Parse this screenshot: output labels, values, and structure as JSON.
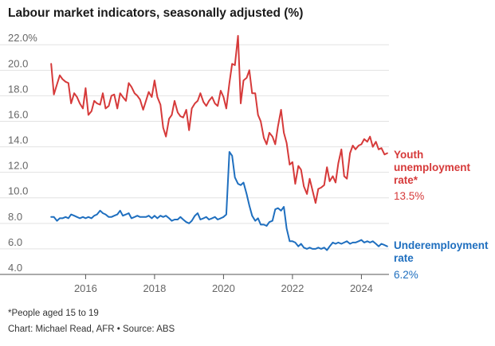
{
  "title": "Labour market indicators, seasonally adjusted (%)",
  "footnote": "*People aged 15 to 19",
  "credit": "Chart: Michael Read, AFR • Source: ABS",
  "colors": {
    "youth": "#d63a3a",
    "under": "#1f6fbf"
  },
  "chart_data": {
    "type": "line",
    "title": "Labour market indicators, seasonally adjusted (%)",
    "xlabel": "",
    "ylabel": "",
    "xlim": [
      2014.95,
      2024.8
    ],
    "ylim": [
      4.0,
      22.7
    ],
    "x_ticks": [
      2016,
      2018,
      2020,
      2022,
      2024
    ],
    "x_tick_labels": [
      "2016",
      "2018",
      "2020",
      "2022",
      "2024"
    ],
    "y_ticks": [
      4,
      6,
      8,
      10,
      12,
      14,
      16,
      18,
      20,
      22
    ],
    "y_tick_labels": [
      "4.0",
      "6.0",
      "8.0",
      "10.0",
      "12.0",
      "14.0",
      "16.0",
      "18.0",
      "20.0",
      "22.0%"
    ],
    "grid": true,
    "legend": "inline-right",
    "series": [
      {
        "name": "Youth unemployment rate*",
        "end_label": "13.5%",
        "color": "#d63a3a",
        "x": [
          2015.0,
          2015.08,
          2015.17,
          2015.25,
          2015.33,
          2015.42,
          2015.5,
          2015.58,
          2015.67,
          2015.75,
          2015.83,
          2015.92,
          2016.0,
          2016.08,
          2016.17,
          2016.25,
          2016.33,
          2016.42,
          2016.5,
          2016.58,
          2016.67,
          2016.75,
          2016.83,
          2016.92,
          2017.0,
          2017.08,
          2017.17,
          2017.25,
          2017.33,
          2017.42,
          2017.5,
          2017.58,
          2017.67,
          2017.75,
          2017.83,
          2017.92,
          2018.0,
          2018.08,
          2018.17,
          2018.25,
          2018.33,
          2018.42,
          2018.5,
          2018.58,
          2018.67,
          2018.75,
          2018.83,
          2018.92,
          2019.0,
          2019.08,
          2019.17,
          2019.25,
          2019.33,
          2019.42,
          2019.5,
          2019.58,
          2019.67,
          2019.75,
          2019.83,
          2019.92,
          2020.0,
          2020.08,
          2020.17,
          2020.25,
          2020.33,
          2020.42,
          2020.5,
          2020.58,
          2020.67,
          2020.75,
          2020.83,
          2020.92,
          2021.0,
          2021.08,
          2021.17,
          2021.25,
          2021.33,
          2021.42,
          2021.5,
          2021.58,
          2021.67,
          2021.75,
          2021.83,
          2021.92,
          2022.0,
          2022.08,
          2022.17,
          2022.25,
          2022.33,
          2022.42,
          2022.5,
          2022.58,
          2022.67,
          2022.75,
          2022.83,
          2022.92,
          2023.0,
          2023.08,
          2023.17,
          2023.25,
          2023.33,
          2023.42,
          2023.5,
          2023.58,
          2023.67,
          2023.75,
          2023.83,
          2023.92,
          2024.0,
          2024.08,
          2024.17,
          2024.25,
          2024.33,
          2024.42,
          2024.5,
          2024.58,
          2024.67,
          2024.75
        ],
        "values": [
          20.5,
          18.1,
          18.9,
          19.6,
          19.3,
          19.1,
          19.0,
          17.4,
          18.2,
          17.9,
          17.4,
          17.0,
          18.6,
          16.5,
          16.8,
          17.6,
          17.4,
          17.3,
          18.2,
          17.0,
          17.2,
          18.0,
          18.1,
          17.0,
          18.2,
          17.9,
          17.6,
          19.0,
          18.7,
          18.2,
          18.0,
          17.7,
          16.9,
          17.6,
          18.3,
          17.9,
          19.2,
          17.9,
          17.3,
          15.5,
          14.8,
          16.2,
          16.5,
          17.6,
          16.7,
          16.4,
          16.3,
          16.9,
          15.3,
          17.0,
          17.4,
          17.6,
          18.2,
          17.5,
          17.2,
          17.6,
          17.9,
          17.4,
          17.2,
          18.4,
          17.9,
          17.0,
          19.0,
          20.5,
          20.4,
          22.7,
          17.4,
          19.2,
          19.4,
          20.0,
          18.2,
          18.2,
          16.5,
          16.0,
          14.7,
          14.2,
          15.1,
          14.8,
          14.2,
          15.6,
          16.9,
          15.1,
          14.3,
          12.6,
          12.8,
          11.1,
          12.5,
          12.2,
          10.9,
          10.3,
          11.5,
          10.6,
          9.6,
          10.7,
          10.8,
          11.0,
          12.4,
          11.3,
          11.7,
          11.2,
          12.7,
          13.8,
          11.7,
          11.5,
          13.5,
          14.1,
          13.8,
          14.1,
          14.2,
          14.6,
          14.4,
          14.8,
          14.0,
          14.4,
          13.8,
          13.9,
          13.4,
          13.5
        ]
      },
      {
        "name": "Underemployment rate",
        "end_label": "6.2%",
        "color": "#1f6fbf",
        "x": [
          2015.0,
          2015.08,
          2015.17,
          2015.25,
          2015.33,
          2015.42,
          2015.5,
          2015.58,
          2015.67,
          2015.75,
          2015.83,
          2015.92,
          2016.0,
          2016.08,
          2016.17,
          2016.25,
          2016.33,
          2016.42,
          2016.5,
          2016.58,
          2016.67,
          2016.75,
          2016.83,
          2016.92,
          2017.0,
          2017.08,
          2017.17,
          2017.25,
          2017.33,
          2017.42,
          2017.5,
          2017.58,
          2017.67,
          2017.75,
          2017.83,
          2017.92,
          2018.0,
          2018.08,
          2018.17,
          2018.25,
          2018.33,
          2018.42,
          2018.5,
          2018.58,
          2018.67,
          2018.75,
          2018.83,
          2018.92,
          2019.0,
          2019.08,
          2019.17,
          2019.25,
          2019.33,
          2019.42,
          2019.5,
          2019.58,
          2019.67,
          2019.75,
          2019.83,
          2019.92,
          2020.0,
          2020.08,
          2020.17,
          2020.25,
          2020.33,
          2020.42,
          2020.5,
          2020.58,
          2020.67,
          2020.75,
          2020.83,
          2020.92,
          2021.0,
          2021.08,
          2021.17,
          2021.25,
          2021.33,
          2021.42,
          2021.5,
          2021.58,
          2021.67,
          2021.75,
          2021.83,
          2021.92,
          2022.0,
          2022.08,
          2022.17,
          2022.25,
          2022.33,
          2022.42,
          2022.5,
          2022.58,
          2022.67,
          2022.75,
          2022.83,
          2022.92,
          2023.0,
          2023.08,
          2023.17,
          2023.25,
          2023.33,
          2023.42,
          2023.5,
          2023.58,
          2023.67,
          2023.75,
          2023.83,
          2023.92,
          2024.0,
          2024.08,
          2024.17,
          2024.25,
          2024.33,
          2024.42,
          2024.5,
          2024.58,
          2024.67,
          2024.75
        ],
        "values": [
          8.5,
          8.5,
          8.2,
          8.4,
          8.4,
          8.5,
          8.4,
          8.7,
          8.6,
          8.5,
          8.4,
          8.5,
          8.4,
          8.5,
          8.4,
          8.6,
          8.7,
          9.0,
          8.8,
          8.7,
          8.5,
          8.5,
          8.6,
          8.7,
          9.0,
          8.6,
          8.7,
          8.8,
          8.4,
          8.5,
          8.6,
          8.5,
          8.5,
          8.5,
          8.6,
          8.4,
          8.6,
          8.4,
          8.6,
          8.5,
          8.6,
          8.4,
          8.2,
          8.3,
          8.3,
          8.5,
          8.3,
          8.1,
          8.0,
          8.2,
          8.6,
          8.8,
          8.3,
          8.4,
          8.5,
          8.3,
          8.4,
          8.5,
          8.3,
          8.4,
          8.5,
          8.7,
          13.6,
          13.3,
          11.6,
          11.1,
          11.0,
          11.2,
          10.3,
          9.4,
          8.6,
          8.2,
          8.4,
          7.9,
          7.9,
          7.8,
          8.1,
          8.2,
          9.1,
          9.2,
          9.0,
          9.3,
          7.6,
          6.6,
          6.6,
          6.5,
          6.2,
          6.4,
          6.1,
          6.0,
          6.1,
          6.0,
          6.0,
          6.1,
          6.0,
          6.1,
          5.9,
          6.2,
          6.5,
          6.4,
          6.5,
          6.4,
          6.5,
          6.6,
          6.4,
          6.5,
          6.5,
          6.6,
          6.7,
          6.5,
          6.6,
          6.5,
          6.6,
          6.4,
          6.2,
          6.4,
          6.3,
          6.2
        ]
      }
    ]
  }
}
